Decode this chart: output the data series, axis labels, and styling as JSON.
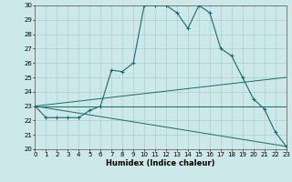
{
  "title": "",
  "xlabel": "Humidex (Indice chaleur)",
  "xlim": [
    0,
    23
  ],
  "ylim": [
    20,
    30
  ],
  "yticks": [
    20,
    21,
    22,
    23,
    24,
    25,
    26,
    27,
    28,
    29,
    30
  ],
  "xticks": [
    0,
    1,
    2,
    3,
    4,
    5,
    6,
    7,
    8,
    9,
    10,
    11,
    12,
    13,
    14,
    15,
    16,
    17,
    18,
    19,
    20,
    21,
    22,
    23
  ],
  "bg_color": "#cde8e8",
  "line_color": "#1a6b6b",
  "grid_color": "#aacfcf",
  "lines": [
    {
      "x": [
        0,
        1,
        2,
        3,
        4,
        5,
        6,
        7,
        8,
        9,
        10,
        11,
        12,
        13,
        14,
        15,
        16,
        17,
        18,
        19,
        20,
        21,
        22,
        23
      ],
      "y": [
        23,
        22.2,
        22.2,
        22.2,
        22.2,
        22.7,
        23.0,
        25.5,
        25.4,
        26.0,
        30.0,
        30.0,
        30.0,
        29.5,
        28.4,
        30.0,
        29.5,
        27.0,
        26.5,
        25.0,
        23.5,
        22.8,
        21.2,
        20.2
      ],
      "marker": true
    },
    {
      "x": [
        0,
        23
      ],
      "y": [
        23,
        25.0
      ],
      "marker": false
    },
    {
      "x": [
        0,
        23
      ],
      "y": [
        23,
        23.0
      ],
      "marker": false
    },
    {
      "x": [
        0,
        23
      ],
      "y": [
        23,
        20.2
      ],
      "marker": false
    }
  ]
}
